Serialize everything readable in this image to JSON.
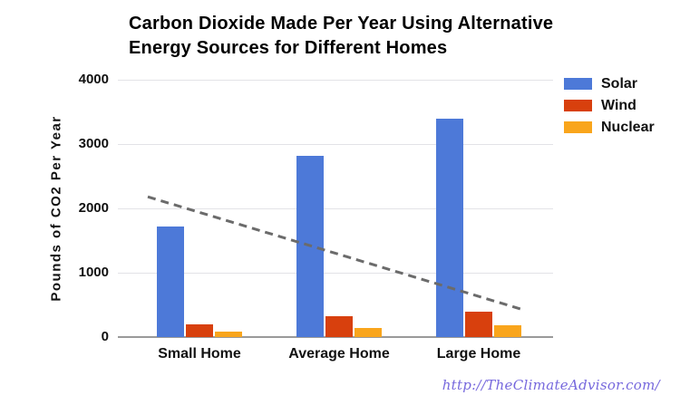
{
  "title": {
    "line1": "Carbon Dioxide Made Per Year Using Alternative",
    "line2": "Energy Sources for Different Homes"
  },
  "watermark": {
    "url_text": "http://TheClimateAdvisor.com/",
    "color": "#7668dd"
  },
  "chart_data": {
    "type": "bar",
    "title": "Carbon Dioxide Made Per Year Using Alternative Energy Sources for Different Homes",
    "categories": [
      "Small Home",
      "Average Home",
      "Large Home"
    ],
    "series": [
      {
        "name": "Solar",
        "color": "#4d79d8",
        "values": [
          1720,
          2820,
          3400
        ]
      },
      {
        "name": "Wind",
        "color": "#d8400d",
        "values": [
          200,
          320,
          400
        ]
      },
      {
        "name": "Nuclear",
        "color": "#f9a51c",
        "values": [
          90,
          140,
          180
        ]
      }
    ],
    "trendline": {
      "style": "dashed",
      "color": "#6b6b6b",
      "start_value": 2180,
      "end_value": 420,
      "values_at_categories": [
        1940,
        1280,
        630
      ]
    },
    "xlabel": "",
    "ylabel": "Pounds of CO2 Per Year",
    "yticks": [
      0,
      1000,
      2000,
      3000,
      4000
    ],
    "ylim": [
      0,
      4000
    ],
    "grid": true,
    "legend_position": "right"
  }
}
